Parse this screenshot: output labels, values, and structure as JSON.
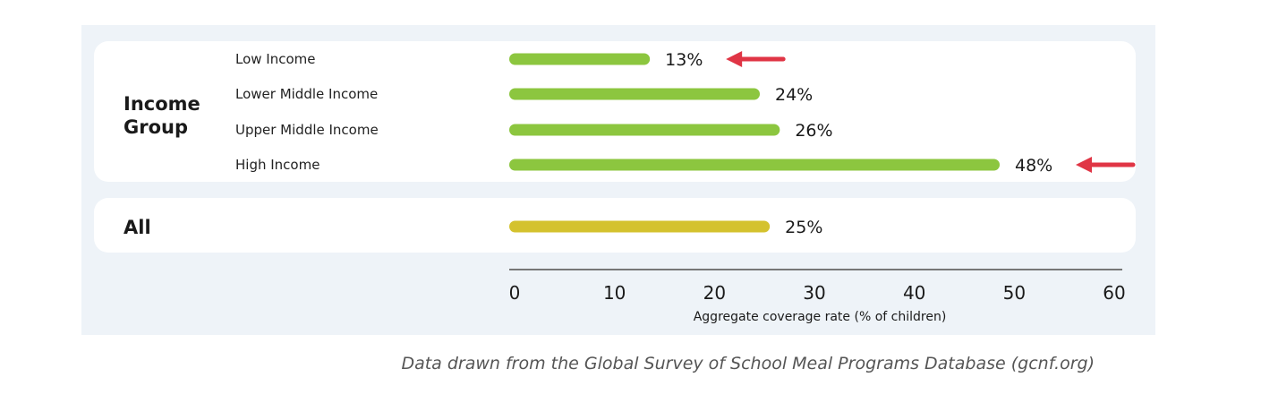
{
  "chart_data": {
    "type": "bar",
    "orientation": "horizontal",
    "groups": [
      {
        "label": "Income\nGroup",
        "categories": [
          "Low Income",
          "Lower Middle Income",
          "Upper Middle Income",
          "High Income"
        ],
        "values": [
          13,
          24,
          26,
          48
        ],
        "value_labels": [
          "13%",
          "24%",
          "26%",
          "48%"
        ],
        "color": "#8cc63f",
        "highlighted": [
          true,
          false,
          false,
          true
        ]
      },
      {
        "label": "All",
        "categories": [
          ""
        ],
        "values": [
          25
        ],
        "value_labels": [
          "25%"
        ],
        "color": "#d4c22e",
        "highlighted": [
          false
        ]
      }
    ],
    "xlabel": "Aggregate coverage rate (% of children)",
    "xticks": [
      0,
      10,
      20,
      30,
      40,
      50,
      60
    ],
    "xlim": [
      0,
      60
    ],
    "highlight_marker": "red-left-arrow",
    "highlight_color": "#e03545"
  },
  "caption": "Data drawn from the Global Survey of School Meal Programs Database (gcnf.org)"
}
